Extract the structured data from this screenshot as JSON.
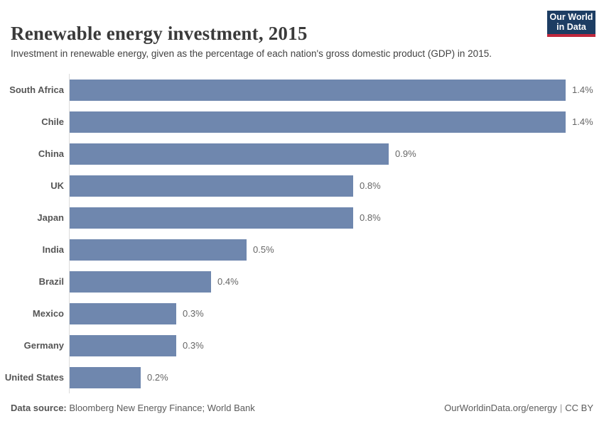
{
  "header": {
    "title": "Renewable energy investment, 2015",
    "subtitle": "Investment in renewable energy, given as the percentage of each nation's gross domestic product (GDP) in 2015.",
    "logo": {
      "line1": "Our World",
      "line2": "in Data"
    }
  },
  "chart_data": {
    "type": "bar",
    "orientation": "horizontal",
    "title": "Renewable energy investment, 2015",
    "categories": [
      "South Africa",
      "Chile",
      "China",
      "UK",
      "Japan",
      "India",
      "Brazil",
      "Mexico",
      "Germany",
      "United States"
    ],
    "values": [
      1.4,
      1.4,
      0.9,
      0.8,
      0.8,
      0.5,
      0.4,
      0.3,
      0.3,
      0.2
    ],
    "value_labels": [
      "1.4%",
      "1.4%",
      "0.9%",
      "0.8%",
      "0.8%",
      "0.5%",
      "0.4%",
      "0.3%",
      "0.3%",
      "0.2%"
    ],
    "unit": "%",
    "xlabel": "",
    "ylabel": "",
    "xlim": [
      0,
      1.4
    ],
    "grid": false,
    "legend": false,
    "bar_color": "#6f87ae"
  },
  "footer": {
    "source_label": "Data source:",
    "source_text": "Bloomberg New Energy Finance; World Bank",
    "url": "OurWorldinData.org/energy",
    "separator": "|",
    "license": "CC BY"
  },
  "colors": {
    "bar": "#6f87ae",
    "axis_line": "#dcdcdc",
    "category_label": "#555555",
    "value_label": "#666666",
    "logo_navy": "#1d3d63",
    "logo_red": "#c0273c"
  }
}
